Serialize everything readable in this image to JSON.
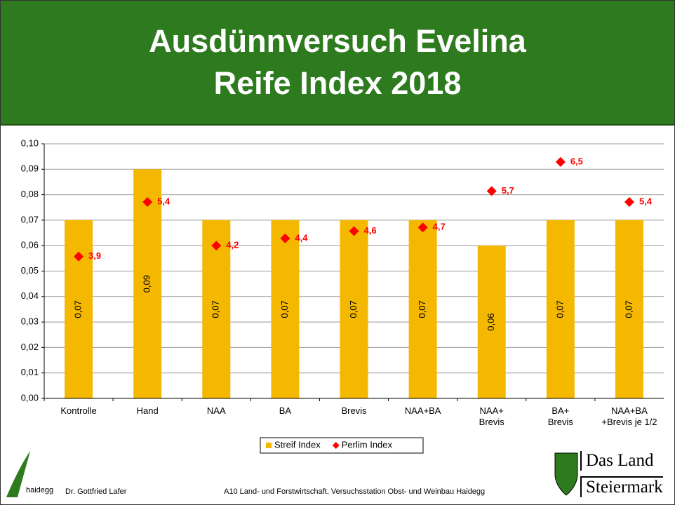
{
  "chart_data": {
    "type": "bar",
    "title": "Ausdünnversuch Evelina\nReife Index 2018",
    "categories": [
      "Kontrolle",
      "Hand",
      "NAA",
      "BA",
      "Brevis",
      "NAA+BA",
      "NAA+\nBrevis",
      "BA+\nBrevis",
      "NAA+BA\n+Brevis je 1/2"
    ],
    "series": [
      {
        "name": "Streif Index",
        "type": "bar",
        "color": "#f5b800",
        "values": [
          0.07,
          0.09,
          0.07,
          0.07,
          0.07,
          0.07,
          0.06,
          0.07,
          0.07
        ],
        "value_labels": [
          "0,07",
          "0,09",
          "0,07",
          "0,07",
          "0,07",
          "0,07",
          "0,06",
          "0,07",
          "0,07"
        ]
      },
      {
        "name": "Perlim Index",
        "type": "scatter",
        "axis": "y2",
        "color": "#ff0000",
        "values": [
          3.9,
          5.4,
          4.2,
          4.4,
          4.6,
          4.7,
          5.7,
          6.5,
          5.4
        ],
        "value_labels": [
          "3,9",
          "5,4",
          "4,2",
          "4,4",
          "4,6",
          "4,7",
          "5,7",
          "6,5",
          "5,4"
        ]
      }
    ],
    "ylim": [
      0,
      0.1
    ],
    "yticks": [
      {
        "value": 0,
        "label": "0,00"
      },
      {
        "value": 0.01,
        "label": "0,01"
      },
      {
        "value": 0.02,
        "label": "0,02"
      },
      {
        "value": 0.03,
        "label": "0,03"
      },
      {
        "value": 0.04,
        "label": "0,04"
      },
      {
        "value": 0.05,
        "label": "0,05"
      },
      {
        "value": 0.06,
        "label": "0,06"
      },
      {
        "value": 0.07,
        "label": "0,07"
      },
      {
        "value": 0.08,
        "label": "0,08"
      },
      {
        "value": 0.09,
        "label": "0,09"
      },
      {
        "value": 0.1,
        "label": "0,10"
      }
    ],
    "y2lim": [
      0,
      7
    ],
    "grid": true,
    "legend": "bottom"
  },
  "footer": {
    "logo_text": "haidegg",
    "author": "Dr. Gottfried Lafer",
    "institution": "A10 Land- und Forstwirtschaft, Versuchsstation Obst- und Weinbau Haidegg",
    "brand_line1": "Das Land",
    "brand_line2": "Steiermark"
  }
}
